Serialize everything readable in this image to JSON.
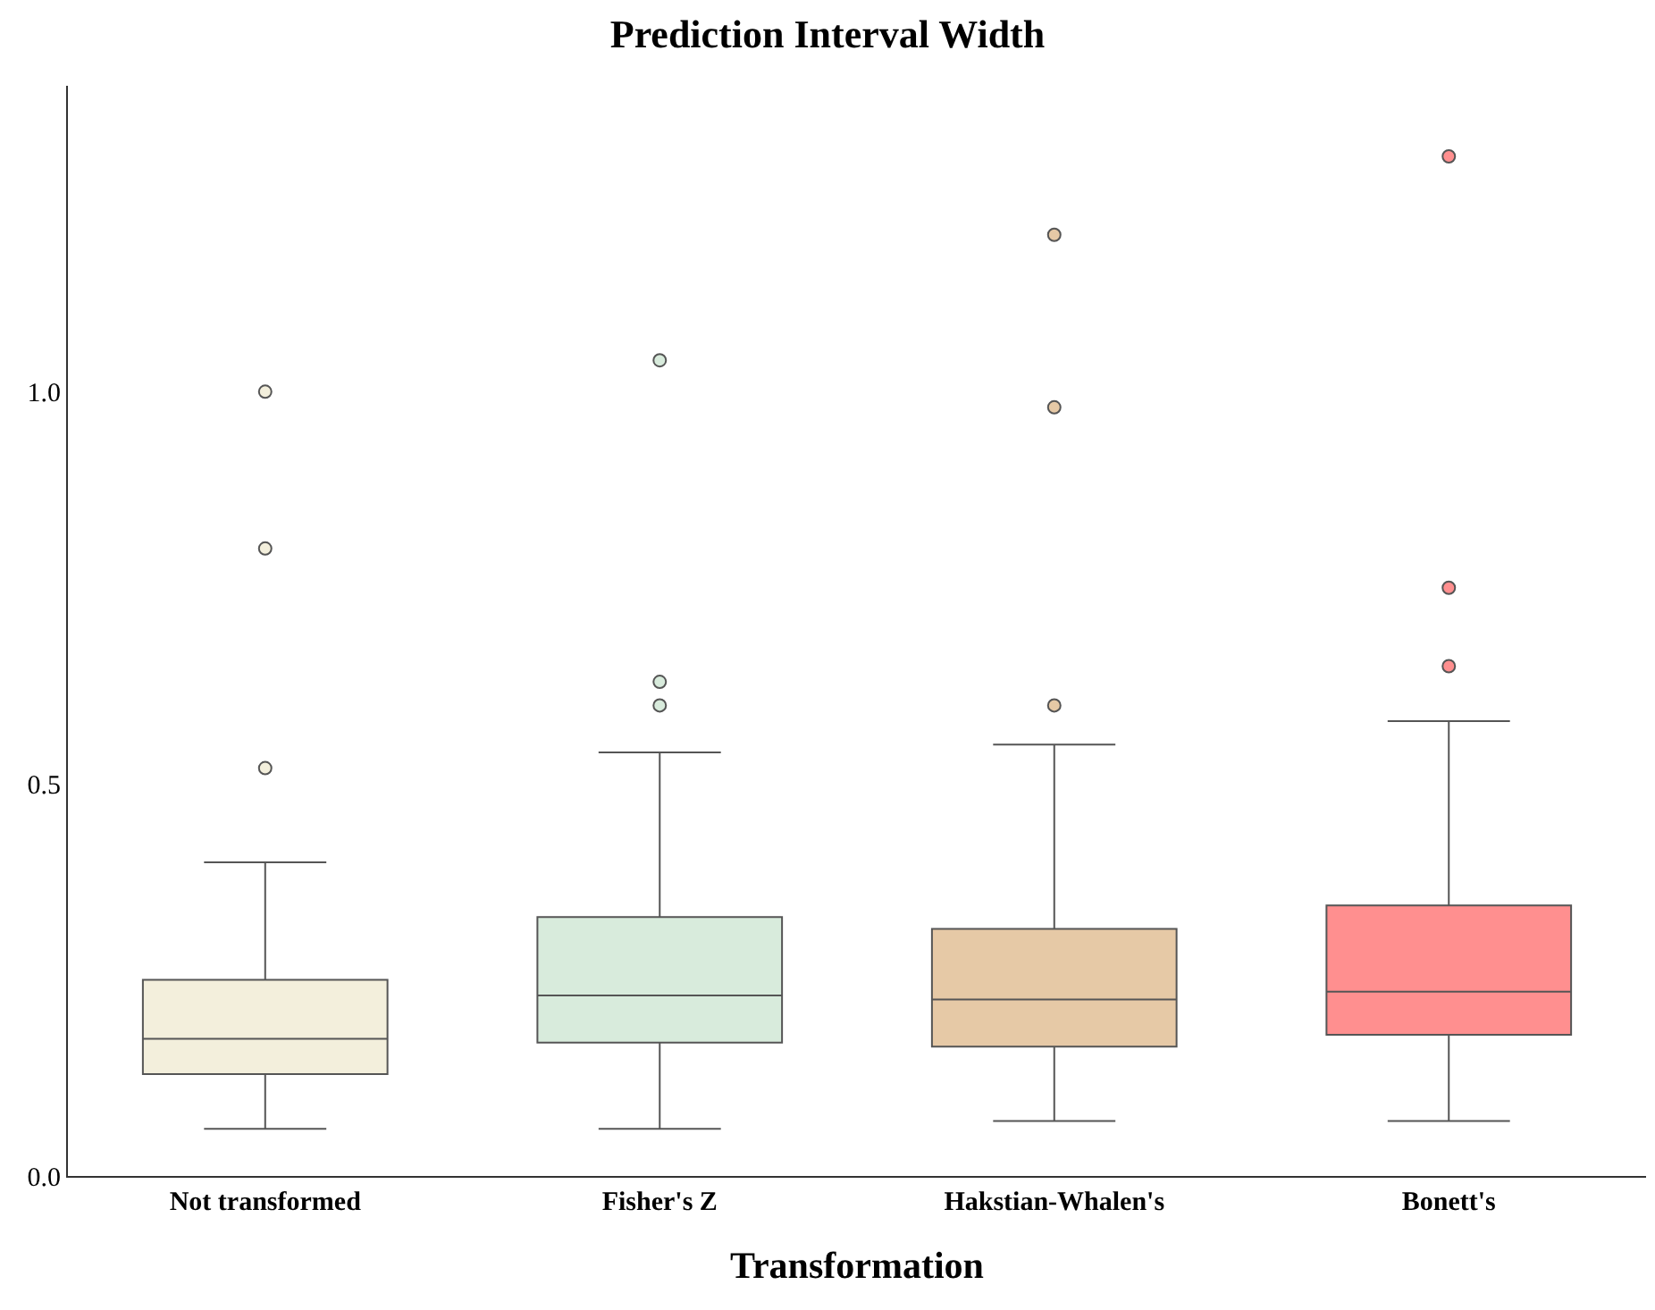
{
  "chart_data": {
    "type": "box",
    "title": "Prediction Interval Width",
    "xlabel": "Transformation",
    "categories": [
      "Not transformed",
      "Fisher's Z",
      "Hakstian-Whalen's",
      "Bonett's"
    ],
    "colors": [
      "#f3efdc",
      "#d8ebdc",
      "#e6c9a6",
      "#ff8f8f"
    ],
    "boxes": [
      {
        "low": 0.06,
        "q1": 0.13,
        "median": 0.175,
        "q3": 0.25,
        "high": 0.4,
        "outliers": [
          0.52,
          0.8,
          1.0
        ]
      },
      {
        "low": 0.06,
        "q1": 0.17,
        "median": 0.23,
        "q3": 0.33,
        "high": 0.54,
        "outliers": [
          0.6,
          0.63,
          1.04
        ]
      },
      {
        "low": 0.07,
        "q1": 0.165,
        "median": 0.225,
        "q3": 0.315,
        "high": 0.55,
        "outliers": [
          0.6,
          0.98,
          1.2
        ]
      },
      {
        "low": 0.07,
        "q1": 0.18,
        "median": 0.235,
        "q3": 0.345,
        "high": 0.58,
        "outliers": [
          0.65,
          0.75,
          1.3
        ]
      }
    ],
    "ylim": [
      0,
      1.39
    ],
    "yticks": [
      {
        "value": 0,
        "label": "0.0"
      },
      {
        "value": 0.5,
        "label": "0.5"
      },
      {
        "value": 1,
        "label": "1.0"
      }
    ],
    "grid": false
  }
}
